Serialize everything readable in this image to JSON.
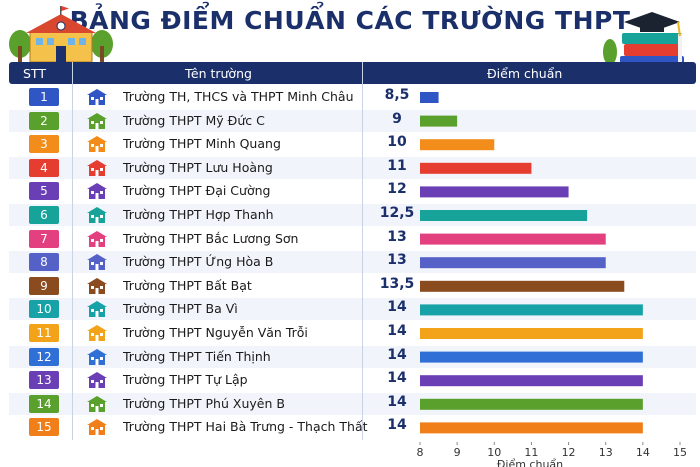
{
  "title": "BẢNG ĐIỂM CHUẨN CÁC TRƯỜNG THPT",
  "headers": {
    "stt": "STT",
    "name": "Tên trường",
    "score": "Điểm chuẩn"
  },
  "chart_data": {
    "type": "bar",
    "orientation": "horizontal",
    "xlabel": "Điểm chuẩn",
    "xlim": [
      8,
      15
    ],
    "ticks": [
      "8",
      "9",
      "10",
      "11",
      "12",
      "13",
      "14",
      "15"
    ],
    "rows": [
      {
        "stt": "1",
        "name": "Trường TH, THCS và THPT Minh Châu",
        "label": "8,5",
        "value": 8.5,
        "color": "#2f56c4"
      },
      {
        "stt": "2",
        "name": "Trường THPT Mỹ Đức C",
        "label": "9",
        "value": 9,
        "color": "#5aa02c"
      },
      {
        "stt": "3",
        "name": "Trường THPT Minh Quang",
        "label": "10",
        "value": 10,
        "color": "#f28c1a"
      },
      {
        "stt": "4",
        "name": "Trường THPT Lưu Hoàng",
        "label": "11",
        "value": 11,
        "color": "#e53d2f"
      },
      {
        "stt": "5",
        "name": "Trường THPT Đại Cường",
        "label": "12",
        "value": 12,
        "color": "#6a3fb5"
      },
      {
        "stt": "6",
        "name": "Trường THPT Hợp Thanh",
        "label": "12,5",
        "value": 12.5,
        "color": "#17a39a"
      },
      {
        "stt": "7",
        "name": "Trường THPT Bắc Lương Sơn",
        "label": "13",
        "value": 13,
        "color": "#e2407f"
      },
      {
        "stt": "8",
        "name": "Trường THPT Ứng Hòa B",
        "label": "13",
        "value": 13,
        "color": "#5561c7"
      },
      {
        "stt": "9",
        "name": "Trường THPT Bất Bạt",
        "label": "13,5",
        "value": 13.5,
        "color": "#8a4b1f"
      },
      {
        "stt": "10",
        "name": "Trường THPT Ba Vì",
        "label": "14",
        "value": 14,
        "color": "#16a2a6"
      },
      {
        "stt": "11",
        "name": "Trường THPT Nguyễn Văn Trỗi",
        "label": "14",
        "value": 14,
        "color": "#f2a319"
      },
      {
        "stt": "12",
        "name": "Trường THPT Tiến Thịnh",
        "label": "14",
        "value": 14,
        "color": "#2f6fd6"
      },
      {
        "stt": "13",
        "name": "Trường THPT Tự Lập",
        "label": "14",
        "value": 14,
        "color": "#6a3fb5"
      },
      {
        "stt": "14",
        "name": "Trường THPT Phú Xuyên B",
        "label": "14",
        "value": 14,
        "color": "#5aa02c"
      },
      {
        "stt": "15",
        "name": "Trường THPT Hai Bà Trưng - Thạch Thất",
        "label": "14",
        "value": 14,
        "color": "#f07f1a"
      }
    ]
  }
}
